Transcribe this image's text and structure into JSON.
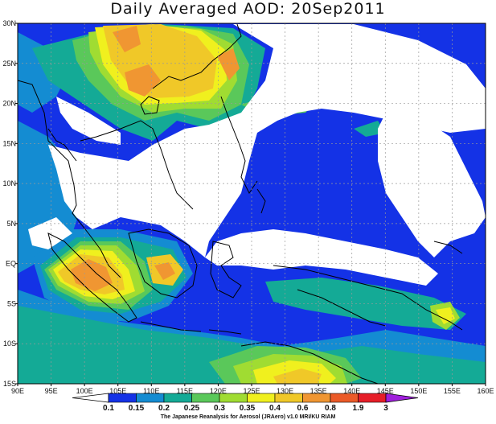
{
  "title": "Daily Averaged AOD: 20Sep2011",
  "credit": "The Japanese Reanalysis for Aerosol (JRAero) v1.0 MRI/KU RIAM",
  "map": {
    "lon_range": [
      90,
      160
    ],
    "lat_range": [
      -15,
      30
    ],
    "x_ticks": [
      "90E",
      "95E",
      "100E",
      "105E",
      "110E",
      "115E",
      "120E",
      "125E",
      "130E",
      "135E",
      "140E",
      "145E",
      "150E",
      "155E",
      "160E"
    ],
    "y_ticks": [
      "30N",
      "25N",
      "20N",
      "15N",
      "10N",
      "5N",
      "EQ",
      "5S",
      "10S",
      "15S"
    ]
  },
  "colorbar": {
    "labels": [
      "0.1",
      "0.15",
      "0.2",
      "0.25",
      "0.3",
      "0.35",
      "0.4",
      "0.6",
      "0.8",
      "1.9",
      "3"
    ],
    "colors": [
      "#1432e6",
      "#148cd2",
      "#14aa96",
      "#5ac85a",
      "#a0dc32",
      "#f0f01e",
      "#f0c828",
      "#f09632",
      "#eb5a28",
      "#e61e28",
      "#a020dc"
    ]
  }
}
